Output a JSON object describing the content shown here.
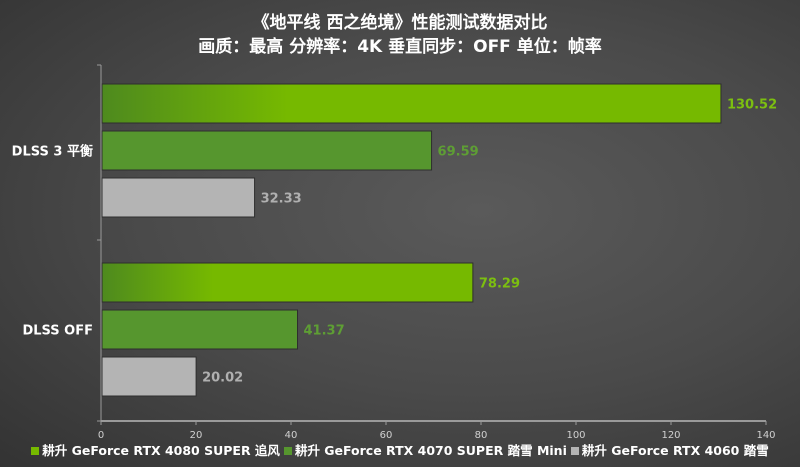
{
  "chart_data": {
    "type": "bar",
    "orientation": "horizontal",
    "title": "《地平线 西之绝境》性能测试数据对比",
    "subtitle": "画质：最高 分辨率：4K 垂直同步：OFF 单位：帧率",
    "categories": [
      "DLSS 3 平衡",
      "DLSS OFF"
    ],
    "series": [
      {
        "name": "耕升 GeForce RTX 4080 SUPER 追风",
        "values": [
          130.52,
          78.29
        ],
        "color": "#76b900",
        "label_color": "#7cbf10"
      },
      {
        "name": "耕升 GeForce RTX 4070 SUPER 踏雪 Mini",
        "values": [
          69.59,
          41.37
        ],
        "color": "#56962e",
        "label_color": "#5e9e34"
      },
      {
        "name": "耕升 GeForce RTX 4060 踏雪",
        "values": [
          32.33,
          20.02
        ],
        "color": "#b4b4b4",
        "label_color": "#b0b0b0"
      }
    ],
    "xlim": [
      0,
      140
    ],
    "xticks": [
      0,
      20,
      40,
      60,
      80,
      100,
      120,
      140
    ],
    "grid": false,
    "legend_position": "bottom"
  }
}
